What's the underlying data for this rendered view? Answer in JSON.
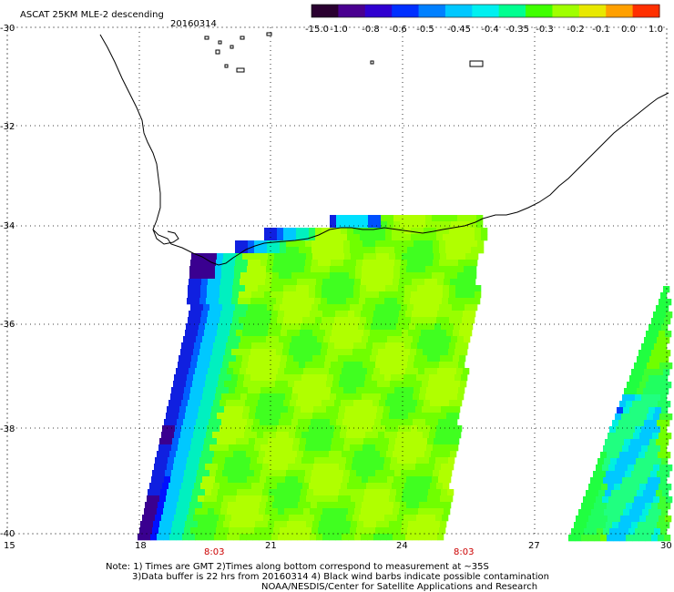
{
  "header": {
    "product": "ASCAT 25KM MLE-2 descending",
    "date": "20160314"
  },
  "colorbar": {
    "labels": [
      "-15.0",
      "-1.0",
      "-0.8",
      "-0.6",
      "-0.5",
      "-0.45",
      "-0.4",
      "-0.35",
      "-0.3",
      "-0.2",
      "-0.1",
      "0.0",
      "1.0"
    ],
    "colors": [
      "#2a0030",
      "#4a0090",
      "#3000d0",
      "#0030ff",
      "#0080ff",
      "#00c8ff",
      "#00f0f0",
      "#00ff90",
      "#40ff00",
      "#a0ff00",
      "#e8e800",
      "#ffa000",
      "#ff3000"
    ]
  },
  "axes": {
    "lat_labels": [
      "-30",
      "-32",
      "-34",
      "-36",
      "-38",
      "-40"
    ],
    "lon_labels": [
      "15",
      "18",
      "21",
      "24",
      "27",
      "30"
    ]
  },
  "pass_times": [
    "8:03",
    "8:03"
  ],
  "notes": {
    "line1": "Note: 1) Times are GMT 2)Times along bottom correspond to measurement at ~35S",
    "line2": "3)Data buffer is 22 hrs from 20160314 4) Black wind barbs indicate possible contamination",
    "line3": "NOAA/NESDIS/Center for Satellite Applications and Research"
  },
  "palette": {
    "land_background": "#ffffff",
    "coastline": "#000000",
    "gridline": "#000000"
  }
}
